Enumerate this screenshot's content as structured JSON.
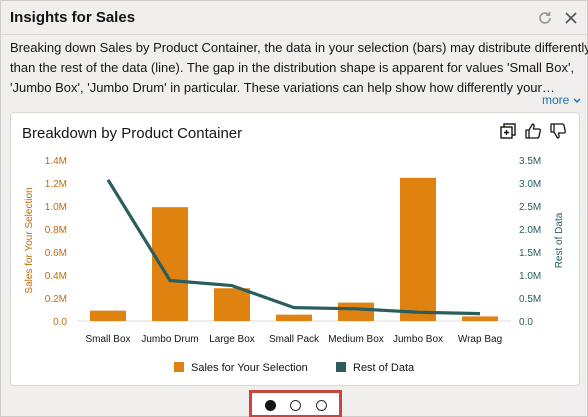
{
  "panel": {
    "title": "Insights for Sales",
    "description_lines": [
      "Breaking down Sales by Product Container, the data in your selection (bars) may distribute differently",
      "than the rest of the data (line). The gap in the distribution shape is apparent for values 'Small Box',",
      "'Jumbo Box', 'Jumbo Drum' in particular. These variations can help show how differently your…"
    ],
    "more_label": "more",
    "icons": [
      "refresh-icon",
      "close-icon"
    ]
  },
  "card": {
    "icons": [
      "add-to-canvas-icon",
      "thumbs-up-icon",
      "thumbs-down-icon"
    ]
  },
  "chart_data": {
    "type": "bar",
    "title": "Breakdown by Product Container",
    "categories": [
      "Small Box",
      "Jumbo Drum",
      "Large Box",
      "Small Pack",
      "Medium Box",
      "Jumbo Box",
      "Wrap Bag"
    ],
    "series": [
      {
        "name": "Sales for Your Selection",
        "type": "bar",
        "axis": "left",
        "color": "#e0820f",
        "values": [
          90000,
          990000,
          285000,
          55000,
          160000,
          1245000,
          40000
        ]
      },
      {
        "name": "Rest of Data",
        "type": "line",
        "axis": "right",
        "color": "#2b5d5f",
        "values": [
          3070000,
          880000,
          770000,
          290000,
          265000,
          190000,
          160000
        ]
      }
    ],
    "ylabel": "Sales for Your Selection",
    "y2label": "Rest of Data",
    "ylim": [
      0,
      1400000
    ],
    "y2lim": [
      0,
      3500000
    ],
    "yticks": [
      "0.0",
      "0.2M",
      "0.4M",
      "0.6M",
      "0.8M",
      "1.0M",
      "1.2M",
      "1.4M"
    ],
    "y2ticks": [
      "0.0",
      "0.5M",
      "1.0M",
      "1.5M",
      "2.0M",
      "2.5M",
      "3.0M",
      "3.5M"
    ],
    "legend": "bottom",
    "grid": false
  },
  "pager": {
    "count": 3,
    "active": 0
  }
}
